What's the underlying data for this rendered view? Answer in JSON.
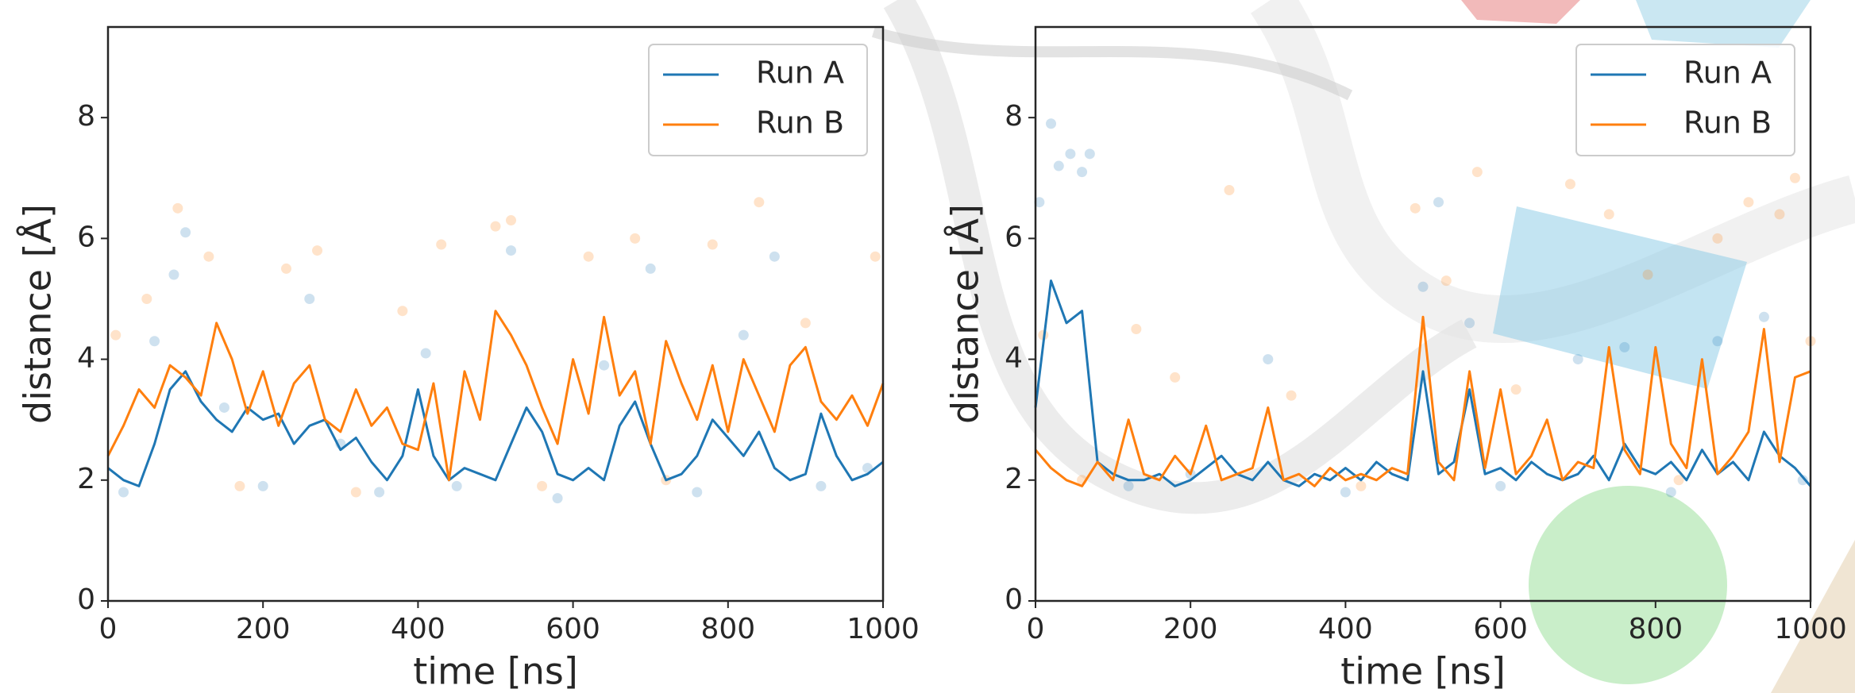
{
  "chart_data": [
    {
      "type": "line",
      "xlabel": "time [ns]",
      "ylabel": "distance [Å]",
      "xlim": [
        0,
        1000
      ],
      "ylim": [
        0,
        9.5
      ],
      "xticks": [
        0,
        200,
        400,
        600,
        800,
        1000
      ],
      "yticks": [
        0,
        2,
        4,
        6,
        8
      ],
      "legend": "upper right",
      "x": [
        0,
        20,
        40,
        60,
        80,
        100,
        120,
        140,
        160,
        180,
        200,
        220,
        240,
        260,
        280,
        300,
        320,
        340,
        360,
        380,
        400,
        420,
        440,
        460,
        480,
        500,
        520,
        540,
        560,
        580,
        600,
        620,
        640,
        660,
        680,
        700,
        720,
        740,
        760,
        780,
        800,
        820,
        840,
        860,
        880,
        900,
        920,
        940,
        960,
        980,
        1000
      ],
      "series": [
        {
          "name": "Run A",
          "color": "#1f77b4",
          "values": [
            2.2,
            2.0,
            1.9,
            2.6,
            3.5,
            3.8,
            3.3,
            3.0,
            2.8,
            3.2,
            3.0,
            3.1,
            2.6,
            2.9,
            3.0,
            2.5,
            2.7,
            2.3,
            2.0,
            2.4,
            3.5,
            2.4,
            2.0,
            2.2,
            2.1,
            2.0,
            2.6,
            3.2,
            2.8,
            2.1,
            2.0,
            2.2,
            2.0,
            2.9,
            3.3,
            2.6,
            2.0,
            2.1,
            2.4,
            3.0,
            2.7,
            2.4,
            2.8,
            2.2,
            2.0,
            2.1,
            3.1,
            2.4,
            2.0,
            2.1,
            2.3
          ]
        },
        {
          "name": "Run B",
          "color": "#ff7f0e",
          "values": [
            2.4,
            2.9,
            3.5,
            3.2,
            3.9,
            3.7,
            3.4,
            4.6,
            4.0,
            3.1,
            3.8,
            2.9,
            3.6,
            3.9,
            3.0,
            2.8,
            3.5,
            2.9,
            3.2,
            2.6,
            2.5,
            3.6,
            2.0,
            3.8,
            3.0,
            4.8,
            4.4,
            3.9,
            3.2,
            2.6,
            4.0,
            3.1,
            4.7,
            3.4,
            3.8,
            2.6,
            4.3,
            3.6,
            3.0,
            3.9,
            2.8,
            4.0,
            3.4,
            2.8,
            3.9,
            4.2,
            3.3,
            3.0,
            3.4,
            2.9,
            3.6
          ]
        }
      ],
      "points": [
        {
          "color": "#1f77b4",
          "x": [
            20,
            60,
            85,
            100,
            150,
            200,
            260,
            300,
            350,
            410,
            450,
            520,
            580,
            640,
            700,
            760,
            820,
            860,
            920,
            980
          ],
          "values": [
            1.8,
            4.3,
            5.4,
            6.1,
            3.2,
            1.9,
            5.0,
            2.6,
            1.8,
            4.1,
            1.9,
            5.8,
            1.7,
            3.9,
            5.5,
            1.8,
            4.4,
            5.7,
            1.9,
            2.2
          ]
        },
        {
          "color": "#ff7f0e",
          "x": [
            10,
            50,
            90,
            130,
            170,
            230,
            270,
            320,
            380,
            430,
            500,
            520,
            560,
            620,
            680,
            720,
            780,
            840,
            900,
            990
          ],
          "values": [
            4.4,
            5.0,
            6.5,
            5.7,
            1.9,
            5.5,
            5.8,
            1.8,
            4.8,
            5.9,
            6.2,
            6.3,
            1.9,
            5.7,
            6.0,
            2.0,
            5.9,
            6.6,
            4.6,
            5.7
          ]
        }
      ]
    },
    {
      "type": "line",
      "xlabel": "time [ns]",
      "ylabel": "distance [Å]",
      "xlim": [
        0,
        1000
      ],
      "ylim": [
        0,
        9.5
      ],
      "xticks": [
        0,
        200,
        400,
        600,
        800,
        1000
      ],
      "yticks": [
        0,
        2,
        4,
        6,
        8
      ],
      "legend": "upper right",
      "x": [
        0,
        20,
        40,
        60,
        80,
        100,
        120,
        140,
        160,
        180,
        200,
        220,
        240,
        260,
        280,
        300,
        320,
        340,
        360,
        380,
        400,
        420,
        440,
        460,
        480,
        500,
        520,
        540,
        560,
        580,
        600,
        620,
        640,
        660,
        680,
        700,
        720,
        740,
        760,
        780,
        800,
        820,
        840,
        860,
        880,
        900,
        920,
        940,
        960,
        980,
        1000
      ],
      "series": [
        {
          "name": "Run A",
          "color": "#1f77b4",
          "values": [
            3.2,
            5.3,
            4.6,
            4.8,
            2.3,
            2.1,
            2.0,
            2.0,
            2.1,
            1.9,
            2.0,
            2.2,
            2.4,
            2.1,
            2.0,
            2.3,
            2.0,
            1.9,
            2.1,
            2.0,
            2.2,
            2.0,
            2.3,
            2.1,
            2.0,
            3.8,
            2.1,
            2.3,
            3.5,
            2.1,
            2.2,
            2.0,
            2.3,
            2.1,
            2.0,
            2.1,
            2.4,
            2.0,
            2.6,
            2.2,
            2.1,
            2.3,
            2.0,
            2.5,
            2.1,
            2.3,
            2.0,
            2.8,
            2.4,
            2.2,
            1.9
          ]
        },
        {
          "name": "Run B",
          "color": "#ff7f0e",
          "values": [
            2.5,
            2.2,
            2.0,
            1.9,
            2.3,
            2.0,
            3.0,
            2.1,
            2.0,
            2.4,
            2.1,
            2.9,
            2.0,
            2.1,
            2.2,
            3.2,
            2.0,
            2.1,
            1.9,
            2.2,
            2.0,
            2.1,
            2.0,
            2.2,
            2.1,
            4.7,
            2.3,
            2.0,
            3.8,
            2.2,
            3.5,
            2.1,
            2.4,
            3.0,
            2.0,
            2.3,
            2.2,
            4.2,
            2.5,
            2.1,
            4.2,
            2.6,
            2.2,
            4.0,
            2.1,
            2.4,
            2.8,
            4.5,
            2.3,
            3.7,
            3.8
          ]
        }
      ],
      "points": [
        {
          "color": "#1f77b4",
          "x": [
            5,
            20,
            30,
            45,
            60,
            70,
            120,
            200,
            300,
            400,
            500,
            520,
            560,
            600,
            700,
            760,
            820,
            880,
            940,
            990
          ],
          "values": [
            6.6,
            7.9,
            7.2,
            7.4,
            7.1,
            7.4,
            1.9,
            2.1,
            4.0,
            1.8,
            5.2,
            6.6,
            4.6,
            1.9,
            4.0,
            4.2,
            1.8,
            4.3,
            4.7,
            2.0
          ]
        },
        {
          "color": "#ff7f0e",
          "x": [
            10,
            60,
            130,
            180,
            250,
            330,
            420,
            490,
            530,
            570,
            620,
            690,
            740,
            790,
            830,
            880,
            920,
            960,
            980,
            1000
          ],
          "values": [
            4.4,
            2.0,
            4.5,
            3.7,
            6.8,
            3.4,
            1.9,
            6.5,
            5.3,
            7.1,
            3.5,
            6.9,
            6.4,
            5.4,
            2.0,
            6.0,
            6.6,
            6.4,
            7.0,
            4.3
          ]
        }
      ]
    }
  ]
}
